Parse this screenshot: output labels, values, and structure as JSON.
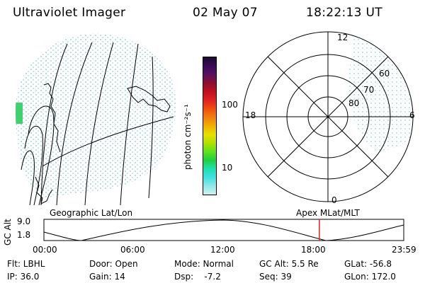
{
  "header": {
    "instrument": "Ultraviolet Imager",
    "date": "02 May 07",
    "time": "18:22:13 UT"
  },
  "colorbar": {
    "label": "photon cm⁻²s⁻¹",
    "ticks": [
      "100",
      "10"
    ],
    "colors": [
      "#1a0a2e",
      "#3a0a5a",
      "#5a1060",
      "#8a1030",
      "#c01020",
      "#e02020",
      "#f05010",
      "#f08010",
      "#f0b000",
      "#e8e000",
      "#b0e000",
      "#60e020",
      "#20d040",
      "#20e0b0",
      "#40e0e0",
      "#90e8e8",
      "#d0f0f0"
    ]
  },
  "left_panel": {
    "name": "geographic-map",
    "dot_color": "#a8d8e0",
    "edge_color": "#30d050"
  },
  "polar_panel": {
    "top_label": "12",
    "bottom_label": "0",
    "left_label": "18",
    "right_label": "6",
    "lat_labels": [
      "80",
      "70",
      "60"
    ]
  },
  "altitude_plot": {
    "ylabel": "GC Alt",
    "yticks": [
      "9.0",
      "1.8"
    ],
    "left_caption": "Geographic Lat/Lon",
    "right_caption": "Apex  MLat/MLT",
    "xticks": [
      "00:00",
      "06:00",
      "12:00",
      "18:00",
      "23:59"
    ],
    "marker_color": "#e02020",
    "marker_time_hours": 18.37
  },
  "info": {
    "flt": "Flt: LBHL",
    "ip": "IP: 36.0",
    "door": "Door: Open",
    "gain": "Gain: 14",
    "mode": "Mode: Normal",
    "dsp": "Dsp:    -7.2",
    "gcalt": "GC Alt: 5.5 Re",
    "seq": "Seq: 39",
    "glat": "GLat: -56.8",
    "glon": "GLon: 172.0"
  }
}
